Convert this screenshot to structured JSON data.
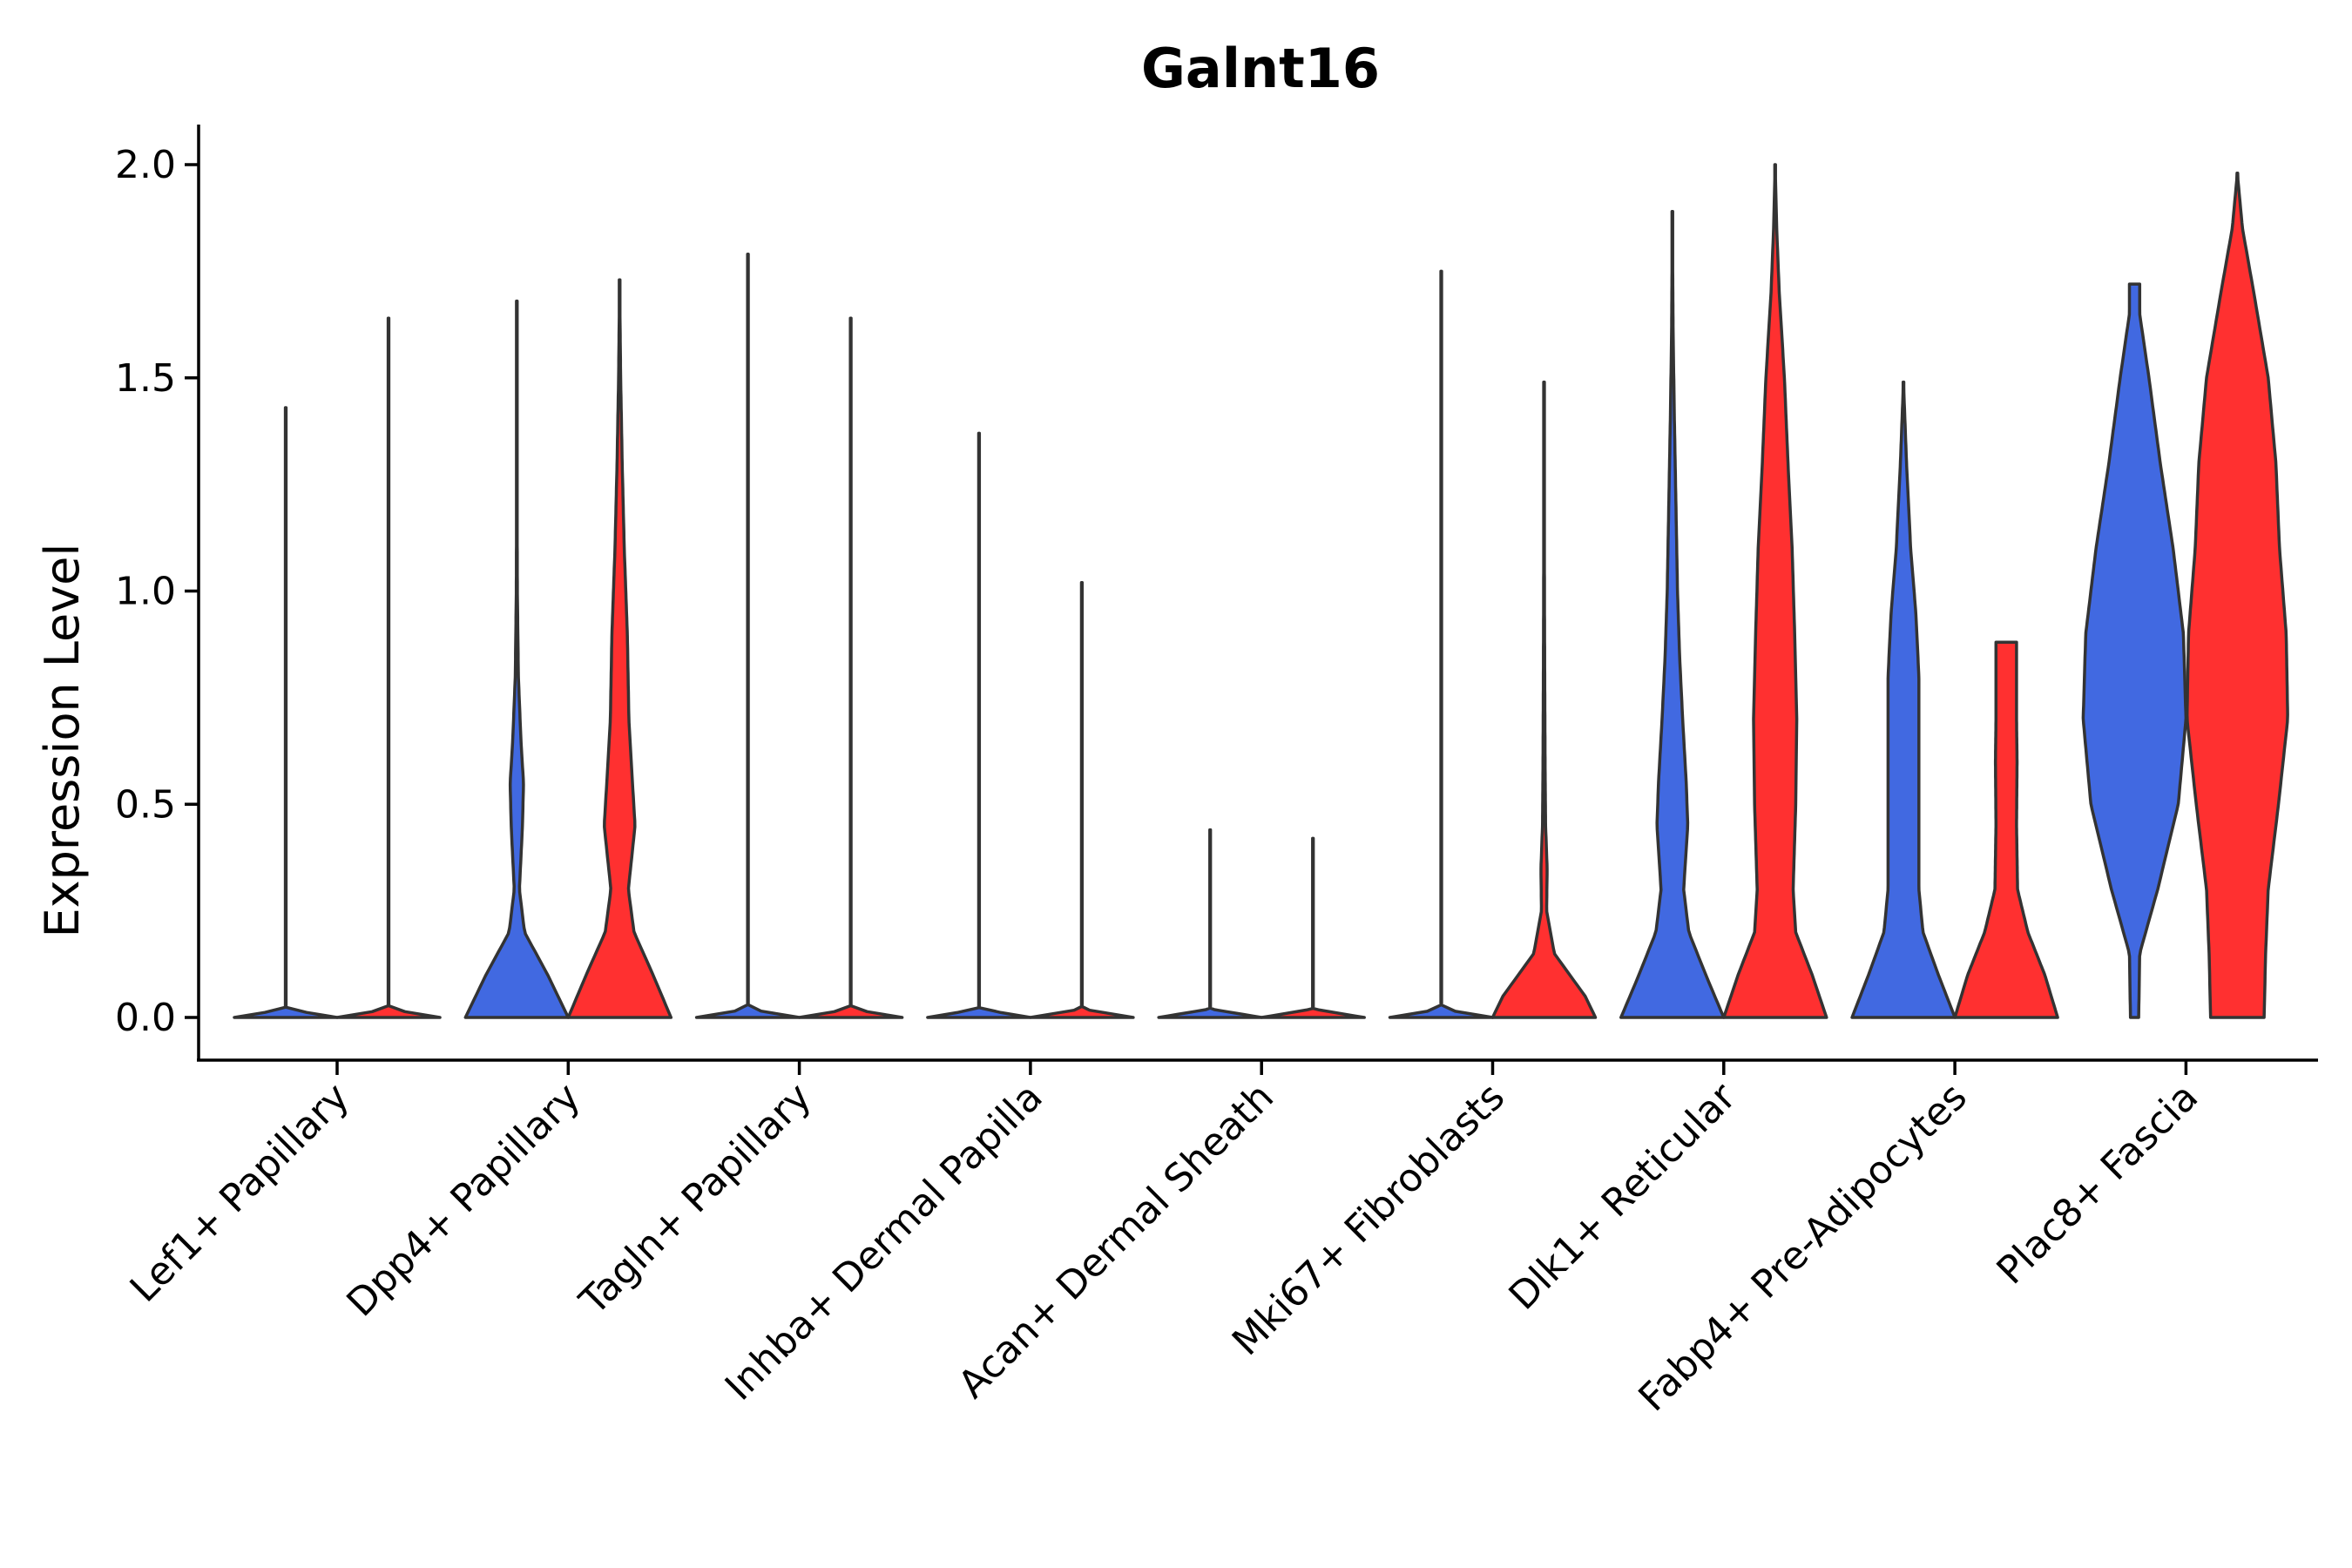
{
  "chart_data": {
    "type": "violin",
    "title": "Galnt16",
    "xlabel": "",
    "ylabel": "Expression Level",
    "ylim": [
      -0.1,
      2.1
    ],
    "yticks": [
      0.0,
      0.5,
      1.0,
      1.5,
      2.0
    ],
    "ytick_labels": [
      "0.0",
      "0.5",
      "1.0",
      "1.5",
      "2.0"
    ],
    "categories": [
      "Lef1+ Papillary",
      "Dpp4+ Papillary",
      "Tagln+ Papillary",
      "Inhba+ Dermal Papilla",
      "Acan+ Dermal Sheath",
      "Mki67+ Fibroblasts",
      "Dlk1+ Reticular",
      "Fabp4+ Pre-Adipocytes",
      "Plac8+ Fascia"
    ],
    "series": [
      {
        "name": "group-blue",
        "color": "#4169E1",
        "max": [
          1.43,
          1.68,
          1.79,
          1.37,
          0.44,
          1.75,
          1.89,
          1.49,
          1.72
        ],
        "profiles": [
          [
            [
              0,
              1
            ],
            [
              0.02,
              0
            ],
            [
              1.43,
              0
            ]
          ],
          [
            [
              0,
              1
            ],
            [
              0.1,
              0.6
            ],
            [
              0.2,
              0.15
            ],
            [
              0.3,
              0.05
            ],
            [
              0.45,
              0.11
            ],
            [
              0.55,
              0.13
            ],
            [
              0.65,
              0.08
            ],
            [
              0.8,
              0.03
            ],
            [
              1.0,
              0.01
            ],
            [
              1.2,
              0.005
            ],
            [
              1.68,
              0
            ]
          ],
          [
            [
              0,
              1
            ],
            [
              0.02,
              0
            ],
            [
              1.79,
              0
            ]
          ],
          [
            [
              0,
              1
            ],
            [
              0.02,
              0
            ],
            [
              1.37,
              0
            ]
          ],
          [
            [
              0,
              1
            ],
            [
              0.02,
              0
            ],
            [
              0.44,
              0
            ]
          ],
          [
            [
              0,
              1
            ],
            [
              0.02,
              0
            ],
            [
              1.75,
              0
            ]
          ],
          [
            [
              0,
              1
            ],
            [
              0.1,
              0.65
            ],
            [
              0.2,
              0.32
            ],
            [
              0.3,
              0.22
            ],
            [
              0.45,
              0.3
            ],
            [
              0.55,
              0.27
            ],
            [
              0.7,
              0.2
            ],
            [
              0.85,
              0.14
            ],
            [
              1.0,
              0.1
            ],
            [
              1.2,
              0.07
            ],
            [
              1.4,
              0.04
            ],
            [
              1.6,
              0.015
            ],
            [
              1.89,
              0
            ]
          ],
          [
            [
              0,
              1
            ],
            [
              0.1,
              0.68
            ],
            [
              0.2,
              0.38
            ],
            [
              0.3,
              0.3
            ],
            [
              0.45,
              0.3
            ],
            [
              0.6,
              0.3
            ],
            [
              0.8,
              0.3
            ],
            [
              0.95,
              0.24
            ],
            [
              1.1,
              0.14
            ],
            [
              1.3,
              0.06
            ],
            [
              1.49,
              0
            ]
          ],
          [
            [
              0,
              0.08
            ],
            [
              0.15,
              0.1
            ],
            [
              0.3,
              0.45
            ],
            [
              0.5,
              0.85
            ],
            [
              0.7,
              1.0
            ],
            [
              0.9,
              0.95
            ],
            [
              1.1,
              0.75
            ],
            [
              1.3,
              0.5
            ],
            [
              1.5,
              0.28
            ],
            [
              1.65,
              0.1
            ],
            [
              1.72,
              0.1
            ]
          ]
        ]
      },
      {
        "name": "group-red",
        "color": "#FF3030",
        "max": [
          1.64,
          1.73,
          1.64,
          1.02,
          0.42,
          1.49,
          2.0,
          0.88,
          1.98
        ],
        "profiles": [
          [
            [
              0,
              1
            ],
            [
              0.02,
              0
            ],
            [
              1.64,
              0
            ]
          ],
          [
            [
              0,
              1
            ],
            [
              0.1,
              0.65
            ],
            [
              0.2,
              0.28
            ],
            [
              0.3,
              0.17
            ],
            [
              0.45,
              0.3
            ],
            [
              0.55,
              0.25
            ],
            [
              0.7,
              0.18
            ],
            [
              0.9,
              0.15
            ],
            [
              1.1,
              0.09
            ],
            [
              1.3,
              0.05
            ],
            [
              1.5,
              0.02
            ],
            [
              1.73,
              0
            ]
          ],
          [
            [
              0,
              1
            ],
            [
              0.02,
              0
            ],
            [
              1.64,
              0
            ]
          ],
          [
            [
              0,
              1
            ],
            [
              0.02,
              0
            ],
            [
              1.02,
              0
            ]
          ],
          [
            [
              0,
              1
            ],
            [
              0.02,
              0
            ],
            [
              0.42,
              0
            ]
          ],
          [
            [
              0,
              1
            ],
            [
              0.05,
              0.8
            ],
            [
              0.1,
              0.5
            ],
            [
              0.15,
              0.2
            ],
            [
              0.25,
              0.05
            ],
            [
              0.35,
              0.06
            ],
            [
              0.45,
              0.03
            ],
            [
              0.6,
              0.02
            ],
            [
              0.9,
              0.01
            ],
            [
              1.2,
              0.005
            ],
            [
              1.49,
              0
            ]
          ],
          [
            [
              0,
              1
            ],
            [
              0.1,
              0.72
            ],
            [
              0.2,
              0.4
            ],
            [
              0.3,
              0.35
            ],
            [
              0.5,
              0.4
            ],
            [
              0.7,
              0.42
            ],
            [
              0.9,
              0.38
            ],
            [
              1.1,
              0.33
            ],
            [
              1.3,
              0.25
            ],
            [
              1.5,
              0.18
            ],
            [
              1.7,
              0.08
            ],
            [
              1.85,
              0.03
            ],
            [
              2.0,
              0
            ]
          ],
          [
            [
              0,
              1
            ],
            [
              0.1,
              0.75
            ],
            [
              0.2,
              0.42
            ],
            [
              0.3,
              0.22
            ],
            [
              0.45,
              0.2
            ],
            [
              0.6,
              0.21
            ],
            [
              0.7,
              0.2
            ],
            [
              0.8,
              0.2
            ],
            [
              0.88,
              0.2
            ]
          ],
          [
            [
              0,
              0.52
            ],
            [
              0.15,
              0.55
            ],
            [
              0.3,
              0.6
            ],
            [
              0.5,
              0.8
            ],
            [
              0.7,
              0.98
            ],
            [
              0.9,
              0.95
            ],
            [
              1.1,
              0.82
            ],
            [
              1.3,
              0.75
            ],
            [
              1.5,
              0.6
            ],
            [
              1.7,
              0.32
            ],
            [
              1.85,
              0.1
            ],
            [
              1.98,
              0
            ]
          ]
        ]
      }
    ]
  }
}
